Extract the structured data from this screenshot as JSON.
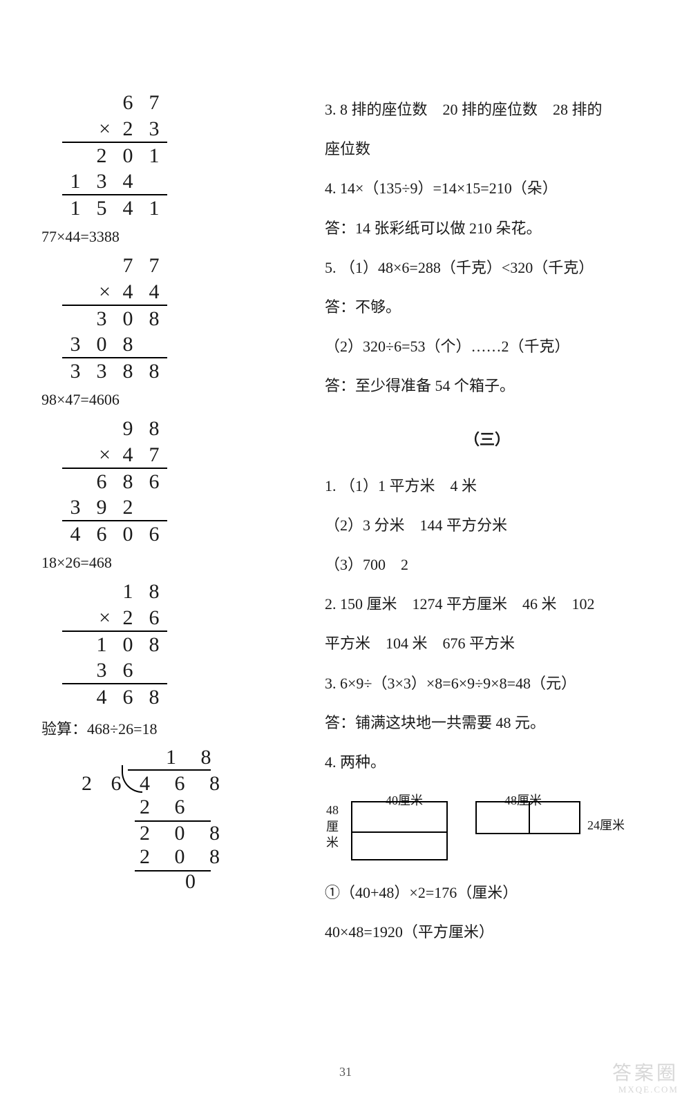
{
  "page_number": "31",
  "watermark": {
    "line1": "答案圈",
    "line2": "MXQE.COM"
  },
  "left": {
    "mult1": {
      "rows": [
        [
          "",
          "",
          "6",
          "7"
        ],
        [
          "",
          "×",
          "2",
          "3"
        ],
        [
          "",
          "2",
          "0",
          "1"
        ],
        [
          "1",
          "3",
          "4",
          ""
        ],
        [
          "1",
          "5",
          "4",
          "1"
        ]
      ],
      "border_before": [
        2,
        4
      ]
    },
    "eq1": "77×44=3388",
    "mult2": {
      "rows": [
        [
          "",
          "",
          "7",
          "7"
        ],
        [
          "",
          "×",
          "4",
          "4"
        ],
        [
          "",
          "3",
          "0",
          "8"
        ],
        [
          "3",
          "0",
          "8",
          ""
        ],
        [
          "3",
          "3",
          "8",
          "8"
        ]
      ],
      "border_before": [
        2,
        4
      ]
    },
    "eq2": "98×47=4606",
    "mult3": {
      "rows": [
        [
          "",
          "",
          "9",
          "8"
        ],
        [
          "",
          "×",
          "4",
          "7"
        ],
        [
          "",
          "6",
          "8",
          "6"
        ],
        [
          "3",
          "9",
          "2",
          ""
        ],
        [
          "4",
          "6",
          "0",
          "6"
        ]
      ],
      "border_before": [
        2,
        4
      ]
    },
    "eq3": "18×26=468",
    "mult4": {
      "rows": [
        [
          "",
          "",
          "1",
          "8"
        ],
        [
          "",
          "×",
          "2",
          "6"
        ],
        [
          "",
          "1",
          "0",
          "8"
        ],
        [
          "",
          "3",
          "6",
          ""
        ],
        [
          "",
          "4",
          "6",
          "8"
        ]
      ],
      "border_before": [
        2,
        4
      ]
    },
    "check_label": "验算：468÷26=18",
    "division": {
      "quotient": "1 8",
      "divisor": "2 6",
      "dividend": "4 6 8",
      "r1": "2 6",
      "r2": "2 0 8",
      "r3": "2 0 8",
      "r4": "0"
    }
  },
  "right": {
    "l3": "3. 8 排的座位数　20 排的座位数　28 排的",
    "l3b": "座位数",
    "l4": "4. 14×（135÷9）=14×15=210（朵）",
    "l4a": "答：14 张彩纸可以做 210 朵花。",
    "l5a": "5. （1）48×6=288（千克）<320（千克）",
    "l5b": "答：不够。",
    "l5c": "（2）320÷6=53（个）……2（千克）",
    "l5d": "答：至少得准备 54 个箱子。",
    "section3": "（三）",
    "s3_1a": "1. （1）1 平方米　4 米",
    "s3_1b": "（2）3 分米　144 平方分米",
    "s3_1c": "（3）700　2",
    "s3_2a": "2. 150 厘米　1274 平方厘米　46 米　102",
    "s3_2b": "平方米　104 米　676 平方米",
    "s3_3a": "3. 6×9÷（3×3）×8=6×9÷9×8=48（元）",
    "s3_3b": "答：铺满这块地一共需要 48 元。",
    "s3_4a": "4. 两种。",
    "diagram": {
      "topA": "40厘米",
      "topB": "48厘米",
      "leftV": "48厘米",
      "rightC": "24厘米"
    },
    "s3_4c": "①（40+48）×2=176（厘米）",
    "s3_4d": "40×48=1920（平方厘米）"
  }
}
